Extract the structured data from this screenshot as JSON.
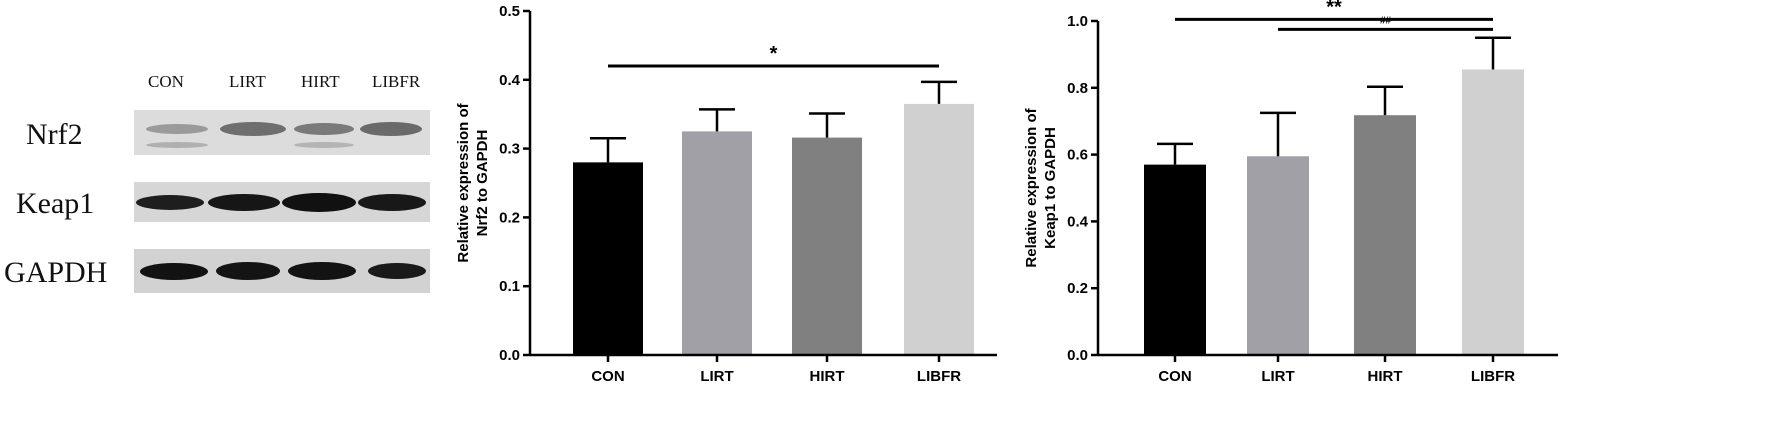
{
  "blot": {
    "lanes": [
      "CON",
      "LIRT",
      "HIRT",
      "LIBFR"
    ],
    "rows": [
      "Nrf2",
      "Keap1",
      "GAPDH"
    ]
  },
  "chart_data": [
    {
      "type": "bar",
      "categories": [
        "CON",
        "LIRT",
        "HIRT",
        "LIBFR"
      ],
      "values": [
        0.28,
        0.325,
        0.316,
        0.365
      ],
      "errors": [
        0.035,
        0.032,
        0.035,
        0.032
      ],
      "colors": [
        "#000000",
        "#a0a0a6",
        "#808080",
        "#d0d0d0"
      ],
      "ylabel": [
        "Relative expression of",
        "Nrf2 to GAPDH"
      ],
      "ylim": [
        0,
        0.5
      ],
      "yticks": [
        "0.0",
        "0.1",
        "0.2",
        "0.3",
        "0.4",
        "0.5"
      ],
      "yticks_values": [
        0,
        0.1,
        0.2,
        0.3,
        0.4,
        0.5
      ],
      "annotations": [
        {
          "from": "CON",
          "to": "LIBFR",
          "label": "*",
          "y": 0.42
        }
      ]
    },
    {
      "type": "bar",
      "categories": [
        "CON",
        "LIRT",
        "HIRT",
        "LIBFR"
      ],
      "values": [
        0.57,
        0.595,
        0.718,
        0.855
      ],
      "errors": [
        0.062,
        0.13,
        0.085,
        0.095
      ],
      "colors": [
        "#000000",
        "#a0a0a6",
        "#808080",
        "#d0d0d0"
      ],
      "ylabel": [
        "Relative expression of",
        "Keap1 to GAPDH"
      ],
      "ylim": [
        0,
        1.0
      ],
      "yticks": [
        "0.0",
        "0.2",
        "0.4",
        "0.6",
        "0.8",
        "1.0"
      ],
      "yticks_values": [
        0,
        0.2,
        0.4,
        0.6,
        0.8,
        1.0
      ],
      "annotations": [
        {
          "from": "CON",
          "to": "LIBFR",
          "label": "**",
          "y": 1.005
        },
        {
          "from": "LIRT",
          "to": "LIBFR",
          "label": "##",
          "y": 0.975
        }
      ]
    }
  ]
}
